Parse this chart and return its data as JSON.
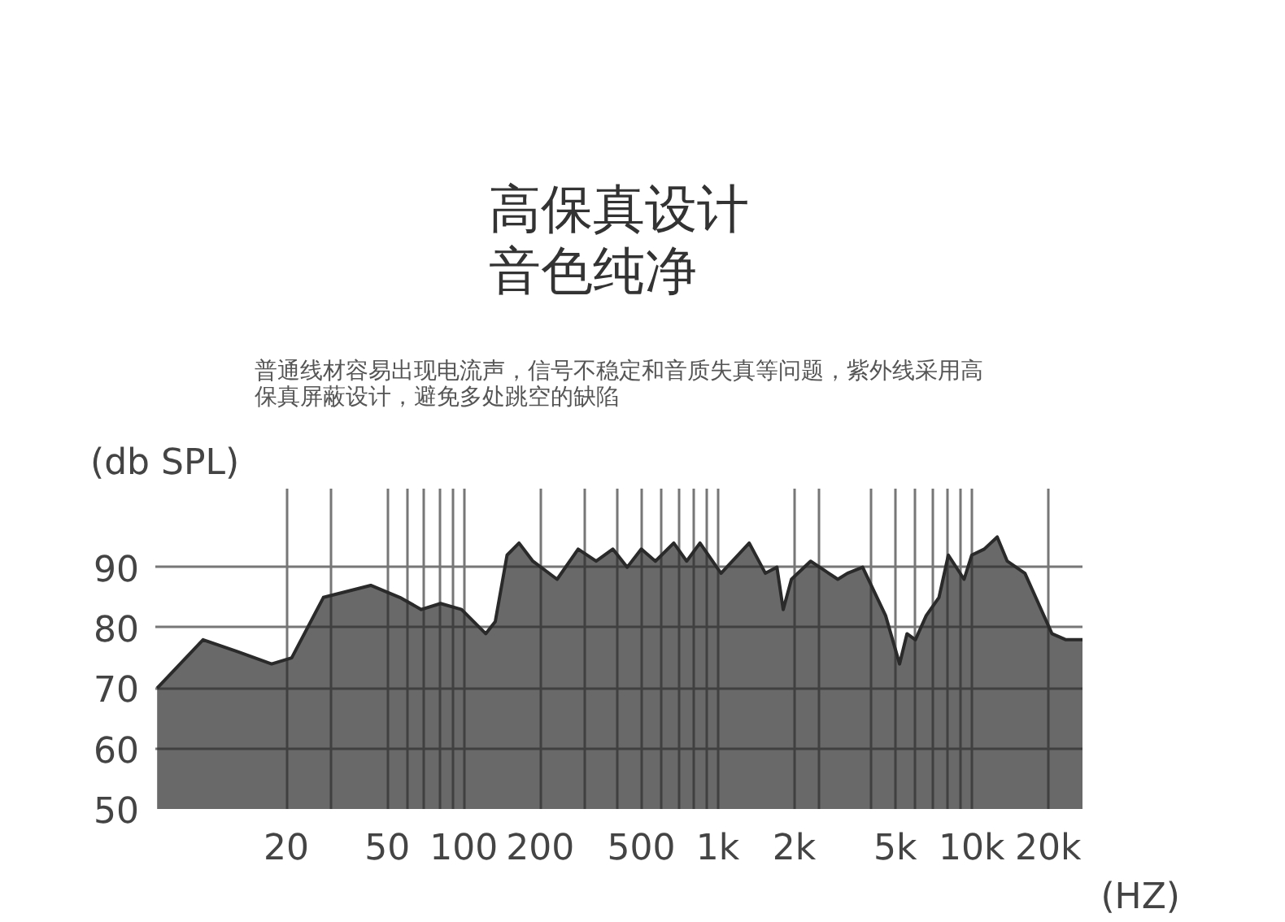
{
  "chart_data": {
    "type": "area",
    "title": "高保真设计音色纯净",
    "subtitle": "普通线材容易出现电流声，信号不稳定和音质失真等问题，紫外线采用高保真屏蔽设计，避免多处跳空的缺陷",
    "ylabel": "(db SPL)",
    "xlabel": "(HZ)",
    "x": [
      6.2,
      9.4,
      12.9,
      17.5,
      21,
      28,
      43,
      56,
      68,
      81,
      98,
      122,
      133,
      148,
      165,
      187,
      233,
      282,
      332,
      386,
      440,
      500,
      568,
      671,
      754,
      851,
      1030,
      1330,
      1540,
      1710,
      1810,
      1950,
      2320,
      2970,
      3240,
      3720,
      4580,
      5200,
      5560,
      6000,
      6620,
      7430,
      8090,
      9330,
      10000,
      11200,
      12600,
      13800,
      16200,
      20700,
      23500,
      27300
    ],
    "series": [
      {
        "color": "#2a2a2a",
        "values": [
          70,
          78,
          76,
          74,
          75,
          85,
          87,
          85,
          83,
          84,
          83,
          79,
          81,
          92,
          94,
          91,
          88,
          93,
          91,
          93,
          90,
          93,
          91,
          94,
          91,
          94,
          89,
          94,
          89,
          90,
          83,
          88,
          91,
          88,
          89,
          90,
          82,
          74,
          79,
          78,
          82,
          85,
          92,
          88,
          92,
          93,
          95,
          91,
          89,
          79,
          78,
          78
        ]
      }
    ],
    "log": "x",
    "xlim": [
      6.1,
      27300
    ],
    "ylim": [
      50,
      103
    ],
    "xticks": [
      20,
      {
        "value": 30,
        "label": null
      },
      50,
      {
        "value": 60,
        "label": null
      },
      {
        "value": 70,
        "label": null
      },
      {
        "value": 80,
        "label": null
      },
      {
        "value": 90,
        "label": null
      },
      100,
      200,
      {
        "value": 300,
        "label": null
      },
      {
        "value": 400,
        "label": null
      },
      500,
      {
        "value": 600,
        "label": null
      },
      {
        "value": 700,
        "label": null
      },
      {
        "value": 800,
        "label": null
      },
      {
        "value": 900,
        "label": null
      },
      {
        "value": 1000,
        "label": "1k"
      },
      {
        "value": 2000,
        "label": "2k"
      },
      {
        "value": 2500,
        "label": null
      },
      {
        "value": 4000,
        "label": null
      },
      {
        "value": 5000,
        "label": "5k"
      },
      {
        "value": 6000,
        "label": null
      },
      {
        "value": 7000,
        "label": null
      },
      {
        "value": 8000,
        "label": null
      },
      {
        "value": 9000,
        "label": null
      },
      {
        "value": 10000,
        "label": "10k"
      },
      {
        "value": 20000,
        "label": "20k"
      }
    ],
    "yticks": [
      50,
      60,
      70,
      80,
      90
    ],
    "grid": true
  }
}
